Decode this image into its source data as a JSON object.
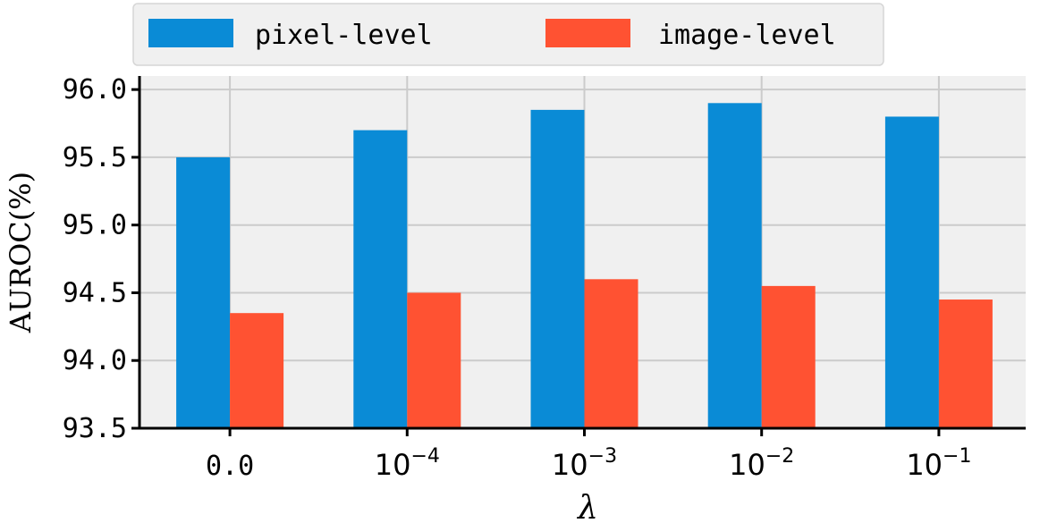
{
  "chart_data": {
    "type": "bar",
    "categories": [
      {
        "base": "0.0",
        "sup": ""
      },
      {
        "base": "10",
        "sup": "−4"
      },
      {
        "base": "10",
        "sup": "−3"
      },
      {
        "base": "10",
        "sup": "−2"
      },
      {
        "base": "10",
        "sup": "−1"
      }
    ],
    "series": [
      {
        "name": "pixel-level",
        "color": "#0a8bd6",
        "values": [
          95.5,
          95.7,
          95.85,
          95.9,
          95.8
        ]
      },
      {
        "name": "image-level",
        "color": "#ff5232",
        "values": [
          94.35,
          94.5,
          94.6,
          94.55,
          94.45
        ]
      }
    ],
    "title": "",
    "xlabel": "λ",
    "ylabel": "AUROC(%)",
    "ylim": [
      93.5,
      96.1
    ],
    "yticks": [
      93.5,
      94.0,
      94.5,
      95.0,
      95.5,
      96.0
    ],
    "ytick_labels": [
      "93.5",
      "94.0",
      "94.5",
      "95.0",
      "95.5",
      "96.0"
    ],
    "grid": true,
    "legend": "top-center"
  }
}
